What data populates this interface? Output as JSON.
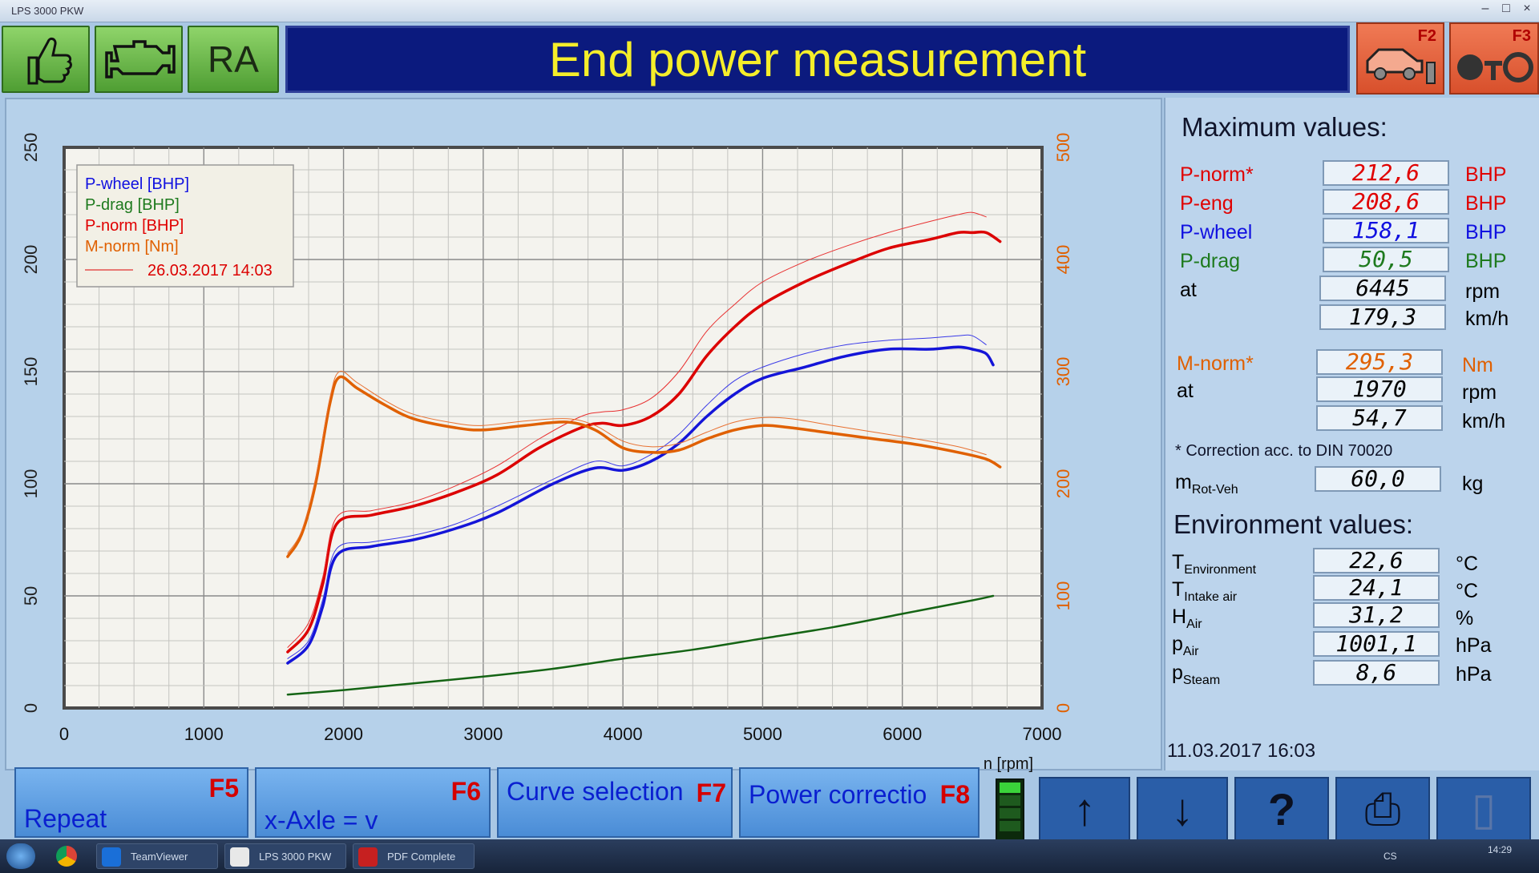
{
  "window": {
    "title": "LPS 3000 PKW",
    "controls": [
      "minimize",
      "maximize",
      "close"
    ]
  },
  "toolbar": {
    "thumb_icon": "thumbs-up-icon",
    "engine_icon": "engine-icon",
    "ra_label": "RA"
  },
  "banner": {
    "title": "End power measurement"
  },
  "top_fkeys": [
    {
      "key": "F2",
      "icon": "car-icon"
    },
    {
      "key": "F3",
      "icon": "oto-icon"
    }
  ],
  "chart_data": {
    "type": "line",
    "xlabel": "n [rpm]",
    "xlim": [
      0,
      7000
    ],
    "x_ticks": [
      "0",
      "1000",
      "2000",
      "3000",
      "4000",
      "5000",
      "6000",
      "7000"
    ],
    "ylim_left": [
      0,
      250
    ],
    "y_ticks_left": [
      "0",
      "50",
      "100",
      "150",
      "200",
      "250"
    ],
    "ylim_right": [
      0,
      500
    ],
    "y_ticks_right": [
      "0",
      "100",
      "200",
      "300",
      "400",
      "500"
    ],
    "grid": true,
    "legend_placement": "top-left",
    "legend": [
      {
        "name": "P-wheel [BHP]",
        "color": "#1010e0"
      },
      {
        "name": "P-drag [BHP]",
        "color": "#1e7a1e"
      },
      {
        "name": "P-norm [BHP]",
        "color": "#e00000"
      },
      {
        "name": "M-norm [Nm]",
        "color": "#e06000"
      }
    ],
    "reference_label": "26.03.2017 14:03",
    "series": [
      {
        "name": "P-wheel [BHP]",
        "color": "#1414d8",
        "axis": "left",
        "width": 3.5,
        "x": [
          1600,
          1750,
          1850,
          1950,
          2200,
          2500,
          2800,
          3100,
          3500,
          3800,
          4000,
          4200,
          4400,
          4600,
          4800,
          5000,
          5300,
          5600,
          5900,
          6200,
          6400,
          6500,
          6600,
          6650
        ],
        "y": [
          20,
          28,
          45,
          68,
          72,
          75,
          80,
          87,
          100,
          107,
          106,
          110,
          118,
          130,
          140,
          147,
          152,
          157,
          160,
          160,
          161,
          160,
          158,
          153
        ]
      },
      {
        "name": "P-wheel [BHP] 26.03.2017 14:03",
        "color": "#3a3ae8",
        "axis": "left",
        "width": 1,
        "x": [
          1600,
          1750,
          1850,
          1950,
          2200,
          2500,
          2800,
          3100,
          3500,
          3800,
          4000,
          4200,
          4400,
          4600,
          4800,
          5000,
          5300,
          5600,
          5900,
          6200,
          6400,
          6500,
          6600
        ],
        "y": [
          22,
          30,
          48,
          71,
          74,
          77,
          82,
          90,
          102,
          110,
          108,
          113,
          122,
          135,
          146,
          152,
          158,
          162,
          164,
          165,
          166,
          166,
          162
        ]
      },
      {
        "name": "P-drag [BHP]",
        "color": "#146414",
        "axis": "left",
        "width": 2.5,
        "x": [
          1600,
          2000,
          2500,
          3000,
          3500,
          4000,
          4500,
          5000,
          5500,
          6000,
          6500,
          6650
        ],
        "y": [
          6,
          8,
          11,
          14,
          17.5,
          22,
          26,
          31,
          36,
          42,
          48,
          50
        ]
      },
      {
        "name": "P-norm [BHP]",
        "color": "#dc0000",
        "axis": "left",
        "width": 3.5,
        "x": [
          1600,
          1750,
          1850,
          1950,
          2200,
          2500,
          2800,
          3100,
          3400,
          3700,
          3850,
          4000,
          4200,
          4400,
          4600,
          4800,
          5000,
          5300,
          5600,
          5900,
          6200,
          6400,
          6500,
          6600,
          6700
        ],
        "y": [
          25,
          35,
          55,
          82,
          86,
          90,
          96,
          104,
          116,
          125,
          127,
          126,
          130,
          140,
          157,
          170,
          180,
          190,
          198,
          205,
          209,
          212,
          212,
          212,
          208
        ]
      },
      {
        "name": "P-norm [BHP] 26.03.2017 14:03",
        "color": "#e83030",
        "axis": "left",
        "width": 1,
        "x": [
          1600,
          1750,
          1850,
          1950,
          2200,
          2500,
          2800,
          3100,
          3400,
          3700,
          3850,
          4000,
          4200,
          4400,
          4600,
          4800,
          5000,
          5300,
          5600,
          5900,
          6200,
          6400,
          6500,
          6600
        ],
        "y": [
          27,
          38,
          58,
          85,
          88,
          92,
          99,
          108,
          120,
          130,
          132,
          133,
          138,
          150,
          168,
          180,
          190,
          199,
          206,
          212,
          217,
          220,
          221,
          219
        ]
      },
      {
        "name": "M-norm [Nm]",
        "color": "#e06000",
        "axis": "right",
        "width": 3.5,
        "x": [
          1600,
          1700,
          1800,
          1900,
          1970,
          2100,
          2300,
          2500,
          2800,
          3000,
          3300,
          3600,
          3800,
          4000,
          4200,
          4400,
          4600,
          4800,
          5000,
          5200,
          5500,
          5800,
          6100,
          6400,
          6600,
          6700
        ],
        "y": [
          135,
          155,
          200,
          270,
          295,
          285,
          270,
          258,
          250,
          248,
          252,
          255,
          248,
          232,
          228,
          230,
          240,
          248,
          252,
          250,
          245,
          240,
          235,
          228,
          222,
          215
        ]
      },
      {
        "name": "M-norm [Nm] 26.03.2017 14:03",
        "color": "#e87030",
        "axis": "right",
        "width": 1,
        "x": [
          1600,
          1700,
          1800,
          1900,
          1970,
          2100,
          2300,
          2500,
          2800,
          3000,
          3300,
          3600,
          3800,
          4000,
          4200,
          4400,
          4600,
          4800,
          5000,
          5200,
          5500,
          5800,
          6100,
          6400,
          6600
        ],
        "y": [
          138,
          158,
          205,
          275,
          300,
          290,
          274,
          262,
          254,
          252,
          256,
          258,
          252,
          238,
          233,
          236,
          246,
          255,
          259,
          258,
          252,
          246,
          240,
          233,
          226
        ]
      }
    ]
  },
  "max_values": {
    "heading": "Maximum values:",
    "rows": [
      {
        "label": "P-norm*",
        "value": "212,6",
        "unit": "BHP",
        "color": "#e00000"
      },
      {
        "label": "P-eng",
        "value": "208,6",
        "unit": "BHP",
        "color": "#e00000"
      },
      {
        "label": "P-wheel",
        "value": "158,1",
        "unit": "BHP",
        "color": "#1010e0"
      },
      {
        "label": "P-drag",
        "value": "50,5",
        "unit": "BHP",
        "color": "#1e7a1e"
      },
      {
        "label": "at",
        "value": "6445",
        "unit": "rpm",
        "color": "#10142a"
      },
      {
        "label": "",
        "value": "179,3",
        "unit": "km/h",
        "color": "#10142a"
      }
    ],
    "torque_rows": [
      {
        "label": "M-norm*",
        "value": "295,3",
        "unit": "Nm",
        "color": "#e06000"
      },
      {
        "label": "at",
        "value": "1970",
        "unit": "rpm",
        "color": "#10142a"
      },
      {
        "label": "",
        "value": "54,7",
        "unit": "km/h",
        "color": "#10142a"
      }
    ],
    "correction_note": "* Correction acc. to DIN 70020",
    "mass": {
      "label_main": "m",
      "label_sub": "Rot-Veh",
      "value": "60,0",
      "unit": "kg"
    }
  },
  "environment": {
    "heading": "Environment values:",
    "rows": [
      {
        "label_main": "T",
        "label_sub": "Environment",
        "value": "22,6",
        "unit": "°C"
      },
      {
        "label_main": "T",
        "label_sub": "Intake air",
        "value": "24,1",
        "unit": "°C"
      },
      {
        "label_main": "H",
        "label_sub": "Air",
        "value": "31,2",
        "unit": "%"
      },
      {
        "label_main": "p",
        "label_sub": "Air",
        "value": "1001,1",
        "unit": "hPa"
      },
      {
        "label_main": "p",
        "label_sub": "Steam",
        "value": "8,6",
        "unit": "hPa"
      }
    ]
  },
  "datetime": "11.03.2017  16:03",
  "fkeys": [
    {
      "label": "Repeat",
      "key": "F5"
    },
    {
      "label": "x-Axle = v",
      "key": "F6"
    },
    {
      "label": "Curve selection",
      "key": "F7"
    },
    {
      "label": "Power correctio",
      "key": "F8"
    }
  ],
  "nav": [
    {
      "icon": "arrow-up-icon",
      "glyph": "↑"
    },
    {
      "icon": "arrow-down-icon",
      "glyph": "↓"
    },
    {
      "icon": "help-icon",
      "glyph": "?"
    },
    {
      "icon": "printer-icon",
      "glyph": "⎙"
    },
    {
      "icon": "door-icon",
      "glyph": "▯"
    }
  ],
  "taskbar": {
    "items": [
      "TeamViewer",
      "LPS 3000 PKW",
      "PDF Complete"
    ],
    "tray_lang": "CS",
    "clock": "14:29"
  }
}
